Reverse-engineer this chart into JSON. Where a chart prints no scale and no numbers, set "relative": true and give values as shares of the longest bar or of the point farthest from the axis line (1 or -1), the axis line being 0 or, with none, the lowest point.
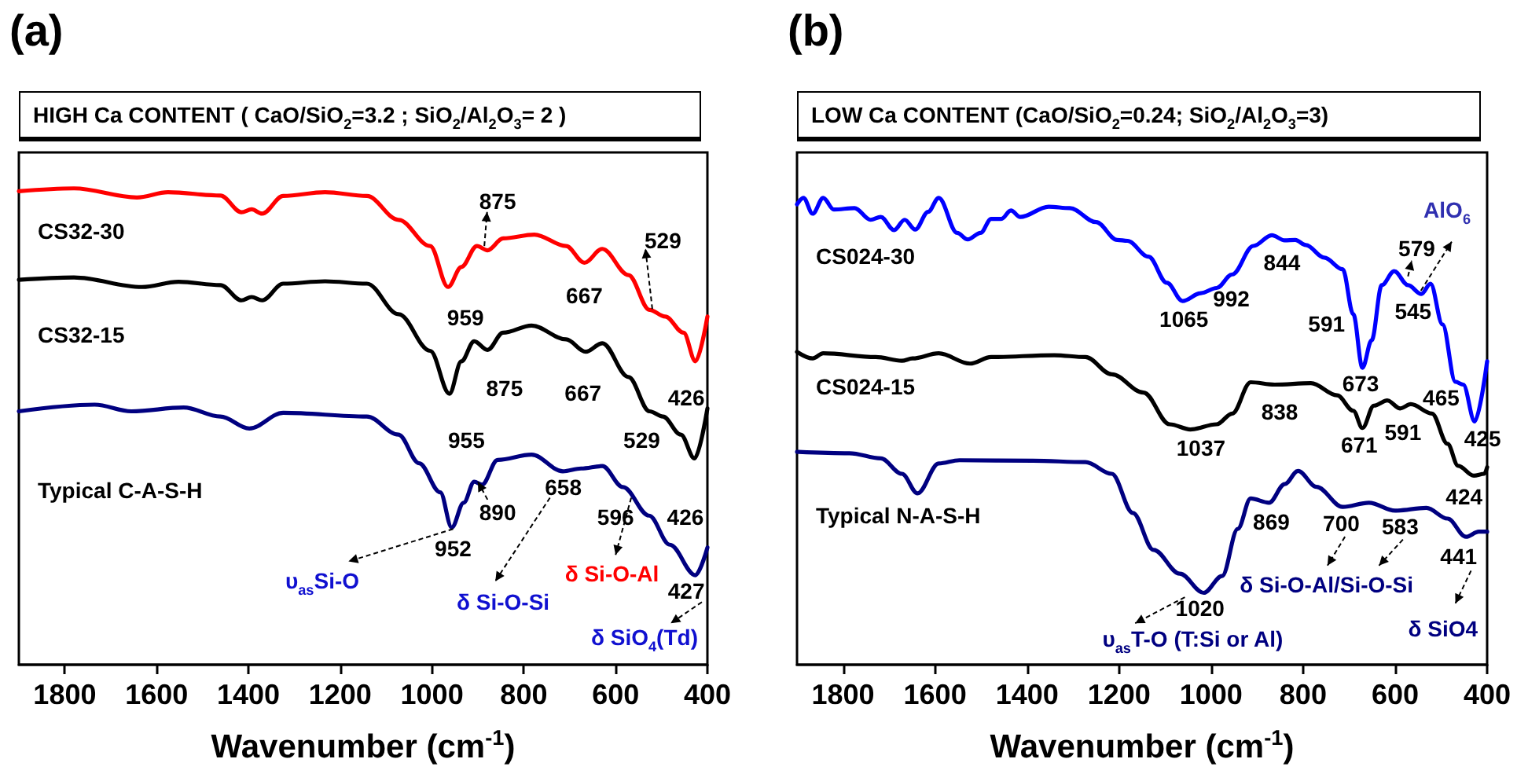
{
  "chart_data": [
    {
      "type": "line",
      "title": "(a)",
      "subtitle": "HIGH Ca CONTENT ( CaO/SiO$_{2}$=3.2 ; SiO$_{2}$/Al$_{2}$O$_{3}$= 2 )",
      "xlabel": "Wavenumber (cm$^{-1}$)",
      "relative": true,
      "marker": "none",
      "xlim": [
        1900,
        400
      ],
      "xticks": [
        1800,
        1600,
        1400,
        1200,
        1000,
        800,
        600,
        400
      ],
      "series": [
        {
          "name": "CS32-30",
          "color": "#ff0000",
          "x": [
            1900,
            1780,
            1643,
            1575,
            1461,
            1415,
            1393,
            1370,
            1324,
            1233,
            1142,
            1073,
            1004,
            965,
            936,
            902,
            879,
            845,
            777,
            708,
            668,
            629,
            572,
            526,
            492,
            452,
            426,
            400
          ],
          "values": [
            0.994,
            1.0,
            0.981,
            0.992,
            0.985,
            0.95,
            0.956,
            0.947,
            0.984,
            0.992,
            0.984,
            0.934,
            0.879,
            0.793,
            0.835,
            0.879,
            0.87,
            0.895,
            0.903,
            0.879,
            0.844,
            0.873,
            0.818,
            0.745,
            0.731,
            0.697,
            0.637,
            0.731
          ]
        },
        {
          "name": "CS32-15",
          "color": "#000000",
          "x": [
            1900,
            1780,
            1632,
            1552,
            1461,
            1415,
            1393,
            1370,
            1324,
            1233,
            1142,
            1073,
            1004,
            962,
            936,
            908,
            879,
            845,
            783,
            708,
            665,
            629,
            572,
            526,
            497,
            458,
            428,
            400
          ],
          "values": [
            0.808,
            0.813,
            0.793,
            0.804,
            0.797,
            0.765,
            0.772,
            0.765,
            0.8,
            0.805,
            0.8,
            0.736,
            0.659,
            0.569,
            0.637,
            0.679,
            0.661,
            0.697,
            0.712,
            0.683,
            0.657,
            0.675,
            0.604,
            0.532,
            0.521,
            0.483,
            0.433,
            0.538
          ]
        },
        {
          "name": "Typical C-A-S-H",
          "color": "#000080",
          "x": [
            1900,
            1735,
            1655,
            1541,
            1461,
            1398,
            1324,
            1142,
            1073,
            1028,
            982,
            957,
            931,
            908,
            891,
            857,
            783,
            715,
            675,
            629,
            584,
            527,
            482,
            426,
            400
          ],
          "values": [
            0.532,
            0.546,
            0.532,
            0.54,
            0.521,
            0.496,
            0.529,
            0.521,
            0.483,
            0.423,
            0.362,
            0.288,
            0.34,
            0.384,
            0.378,
            0.43,
            0.441,
            0.406,
            0.412,
            0.417,
            0.373,
            0.313,
            0.252,
            0.188,
            0.246
          ]
        }
      ],
      "annotations": [
        "875",
        "529",
        "667",
        "959",
        "875",
        "667",
        "426",
        "955",
        "529",
        "658",
        "890",
        "596",
        "426",
        "952",
        "427",
        "υ$_{as}$Si-O",
        "δ Si-O-Si",
        "δ Si-O-Al",
        "δ SiO$_{4}$(Td)"
      ]
    },
    {
      "type": "line",
      "title": "(b)",
      "subtitle": "LOW Ca CONTENT (CaO/SiO$_{2}$=0.24; SiO$_{2}$/Al$_{2}$O$_{3}$=3)",
      "xlabel": "Wavenumber (cm$^{-1}$)",
      "relative": true,
      "marker": "none",
      "xlim": [
        1900,
        400
      ],
      "xticks": [
        1800,
        1600,
        1400,
        1200,
        1000,
        800,
        600,
        400
      ],
      "series": [
        {
          "name": "CS024-30",
          "color": "#0000ff",
          "x": [
            1900,
            1886,
            1866,
            1843,
            1820,
            1775,
            1740,
            1718,
            1689,
            1666,
            1643,
            1615,
            1592,
            1552,
            1529,
            1501,
            1478,
            1456,
            1435,
            1415,
            1353,
            1307,
            1250,
            1204,
            1182,
            1136,
            1096,
            1062,
            1022,
            988,
            954,
            908,
            868,
            840,
            817,
            794,
            754,
            714,
            691,
            671,
            651,
            629,
            602,
            572,
            543,
            523,
            497,
            469,
            452,
            427,
            400
          ],
          "values": [
            0.986,
            1.0,
            0.966,
            1.0,
            0.975,
            0.978,
            0.953,
            0.959,
            0.931,
            0.953,
            0.932,
            0.97,
            1.0,
            0.925,
            0.911,
            0.925,
            0.955,
            0.955,
            0.973,
            0.959,
            0.981,
            0.978,
            0.948,
            0.91,
            0.908,
            0.874,
            0.818,
            0.779,
            0.796,
            0.807,
            0.836,
            0.897,
            0.92,
            0.909,
            0.91,
            0.899,
            0.872,
            0.847,
            0.751,
            0.636,
            0.695,
            0.813,
            0.843,
            0.813,
            0.794,
            0.816,
            0.729,
            0.606,
            0.6,
            0.521,
            0.65
          ]
        },
        {
          "name": "CS024-15",
          "color": "#000000",
          "x": [
            1900,
            1866,
            1843,
            1729,
            1672,
            1649,
            1592,
            1524,
            1478,
            1341,
            1273,
            1216,
            1147,
            1090,
            1045,
            988,
            954,
            914,
            862,
            783,
            726,
            691,
            671,
            646,
            617,
            589,
            566,
            520,
            486,
            463,
            429,
            406,
            400
          ],
          "values": [
            0.67,
            0.656,
            0.667,
            0.659,
            0.651,
            0.656,
            0.667,
            0.645,
            0.659,
            0.663,
            0.659,
            0.622,
            0.583,
            0.515,
            0.504,
            0.515,
            0.538,
            0.605,
            0.6,
            0.603,
            0.577,
            0.544,
            0.507,
            0.555,
            0.566,
            0.549,
            0.558,
            0.538,
            0.473,
            0.426,
            0.405,
            0.409,
            0.423
          ]
        },
        {
          "name": "Typical N-A-S-H",
          "color": "#000080",
          "x": [
            1900,
            1786,
            1718,
            1672,
            1638,
            1592,
            1547,
            1387,
            1273,
            1216,
            1170,
            1125,
            1068,
            1016,
            976,
            942,
            914,
            874,
            840,
            811,
            771,
            714,
            657,
            600,
            532,
            486,
            446,
            418,
            400
          ],
          "values": [
            0.456,
            0.453,
            0.442,
            0.409,
            0.367,
            0.431,
            0.438,
            0.437,
            0.434,
            0.409,
            0.325,
            0.246,
            0.195,
            0.154,
            0.19,
            0.291,
            0.356,
            0.347,
            0.387,
            0.415,
            0.381,
            0.338,
            0.347,
            0.33,
            0.336,
            0.313,
            0.274,
            0.285,
            0.285
          ]
        }
      ],
      "annotations": [
        "AlO$_{6}$",
        "579",
        "844",
        "992",
        "1065",
        "591",
        "545",
        "673",
        "465",
        "838",
        "671",
        "591",
        "425",
        "1037",
        "424",
        "869",
        "700",
        "583",
        "441",
        "1020",
        "δ Si-O-Al/Si-O-Si",
        "υ$_{as}$T-O (T:Si or Al)",
        "δ SiO4"
      ]
    }
  ]
}
